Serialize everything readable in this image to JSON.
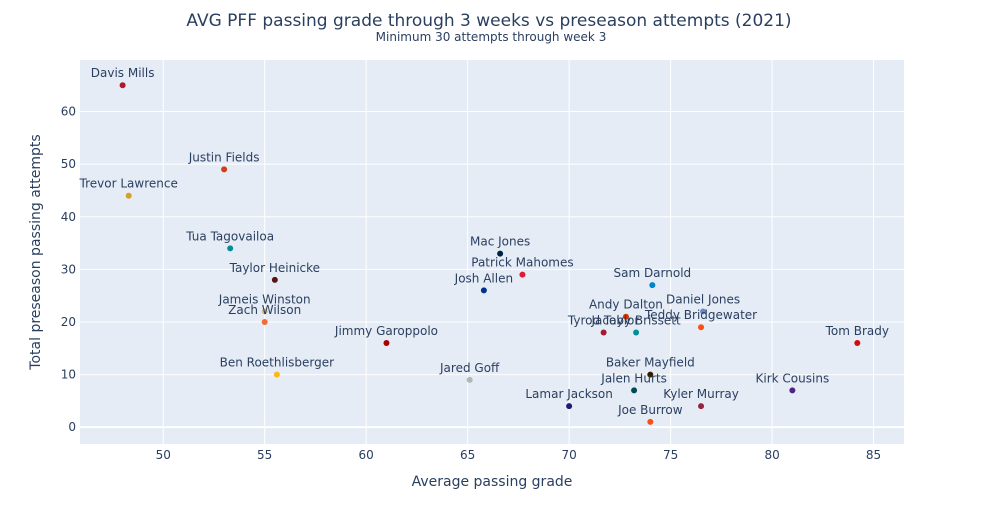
{
  "chart_data": {
    "type": "scatter",
    "title": "AVG PFF passing grade through 3 weeks vs preseason attempts (2021)",
    "subtitle": "Minimum 30 attempts through week 3",
    "xlabel": "Average passing grade",
    "ylabel": "Total preseason passing attempts",
    "xlim": [
      45.9,
      86.5
    ],
    "ylim": [
      -3.2,
      69.8
    ],
    "xticks": [
      50,
      55,
      60,
      65,
      70,
      75,
      80,
      85
    ],
    "yticks": [
      0,
      10,
      20,
      30,
      40,
      50,
      60
    ],
    "grid": true,
    "legend": "none",
    "points": [
      {
        "label": "Davis Mills",
        "x": 48.0,
        "y": 65,
        "color": "#b2182b"
      },
      {
        "label": "Justin Fields",
        "x": 53.0,
        "y": 49,
        "color": "#d73b14"
      },
      {
        "label": "Trevor Lawrence",
        "x": 48.3,
        "y": 44,
        "color": "#d4a02a"
      },
      {
        "label": "Tua Tagovailoa",
        "x": 53.3,
        "y": 34,
        "color": "#008e97"
      },
      {
        "label": "Taylor Heinicke",
        "x": 55.5,
        "y": 28,
        "color": "#5a1414"
      },
      {
        "label": "Jameis Winston",
        "x": 55.0,
        "y": 22,
        "color": "#d3bc8d"
      },
      {
        "label": "Zach Wilson",
        "x": 55.0,
        "y": 20,
        "color": "#f26b35"
      },
      {
        "label": "Ben Roethlisberger",
        "x": 55.6,
        "y": 10,
        "color": "#ffb612"
      },
      {
        "label": "Jimmy Garoppolo",
        "x": 61.0,
        "y": 16,
        "color": "#aa0000"
      },
      {
        "label": "Jared Goff",
        "x": 65.1,
        "y": 9,
        "color": "#b0b7bc"
      },
      {
        "label": "Mac Jones",
        "x": 66.6,
        "y": 33,
        "color": "#002244"
      },
      {
        "label": "Patrick Mahomes",
        "x": 67.7,
        "y": 29,
        "color": "#e31837"
      },
      {
        "label": "Josh Allen",
        "x": 65.8,
        "y": 26,
        "color": "#00338d"
      },
      {
        "label": "Lamar Jackson",
        "x": 70.0,
        "y": 4,
        "color": "#241773"
      },
      {
        "label": "Tyrod Taylor",
        "x": 71.7,
        "y": 18,
        "color": "#a71930"
      },
      {
        "label": "Andy Dalton",
        "x": 72.8,
        "y": 21,
        "color": "#c83803"
      },
      {
        "label": "Jacoby Brissett",
        "x": 73.3,
        "y": 18,
        "color": "#008e97"
      },
      {
        "label": "Sam Darnold",
        "x": 74.1,
        "y": 27,
        "color": "#0085ca"
      },
      {
        "label": "Baker Mayfield",
        "x": 74.0,
        "y": 10,
        "color": "#311d00"
      },
      {
        "label": "Jalen Hurts",
        "x": 73.2,
        "y": 7,
        "color": "#004c54"
      },
      {
        "label": "Joe Burrow",
        "x": 74.0,
        "y": 1,
        "color": "#fb4f14"
      },
      {
        "label": "Daniel Jones",
        "x": 76.6,
        "y": 22,
        "color": "#6a89cc"
      },
      {
        "label": "Teddy Bridgewater",
        "x": 76.5,
        "y": 19,
        "color": "#fb4f14"
      },
      {
        "label": "Kyler Murray",
        "x": 76.5,
        "y": 4,
        "color": "#97233f"
      },
      {
        "label": "Kirk Cousins",
        "x": 81.0,
        "y": 7,
        "color": "#4f2683"
      },
      {
        "label": "Tom Brady",
        "x": 84.2,
        "y": 16,
        "color": "#d50a0a"
      }
    ]
  }
}
